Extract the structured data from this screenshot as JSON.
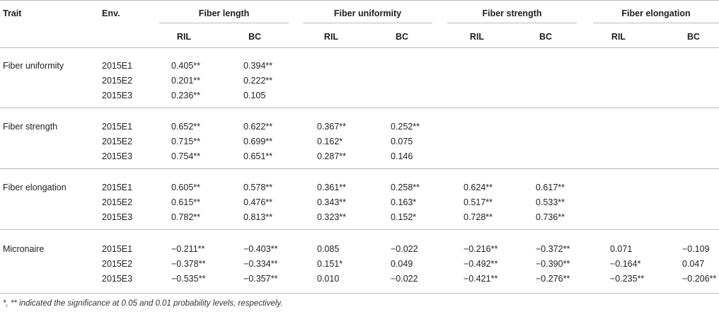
{
  "columns": {
    "trait": "Trait",
    "env": "Env.",
    "groups": [
      "Fiber length",
      "Fiber uniformity",
      "Fiber strength",
      "Fiber elongation"
    ],
    "sub": [
      "RIL",
      "BC"
    ]
  },
  "rows": [
    {
      "trait": "Fiber uniformity",
      "env": [
        "2015E1",
        "2015E2",
        "2015E3"
      ],
      "values": [
        [
          "0.405**",
          "0.394**",
          "",
          "",
          "",
          "",
          "",
          ""
        ],
        [
          "0.201**",
          "0.222**",
          "",
          "",
          "",
          "",
          "",
          ""
        ],
        [
          "0.236**",
          "0.105",
          "",
          "",
          "",
          "",
          "",
          ""
        ]
      ]
    },
    {
      "trait": "Fiber strength",
      "env": [
        "2015E1",
        "2015E2",
        "2015E3"
      ],
      "values": [
        [
          "0.652**",
          "0.622**",
          "0.367**",
          "0.252**",
          "",
          "",
          "",
          ""
        ],
        [
          "0.715**",
          "0.699**",
          "0.162*",
          "0.075",
          "",
          "",
          "",
          ""
        ],
        [
          "0.754**",
          "0.651**",
          "0.287**",
          "0.146",
          "",
          "",
          "",
          ""
        ]
      ]
    },
    {
      "trait": "Fiber elongation",
      "env": [
        "2015E1",
        "2015E2",
        "2015E3"
      ],
      "values": [
        [
          "0.605**",
          "0.578**",
          "0.361**",
          "0.258**",
          "0.624**",
          "0.617**",
          "",
          ""
        ],
        [
          "0.615**",
          "0.476**",
          "0.343**",
          "0.163*",
          "0.517**",
          "0.533**",
          "",
          ""
        ],
        [
          "0.782**",
          "0.813**",
          "0.323**",
          "0.152*",
          "0.728**",
          "0.736**",
          "",
          ""
        ]
      ]
    },
    {
      "trait": "Micronaire",
      "env": [
        "2015E1",
        "2015E2",
        "2015E3"
      ],
      "values": [
        [
          "−0.211**",
          "−0.403**",
          "0.085",
          "−0.022",
          "−0.216**",
          "−0.372**",
          "0.071",
          "−0.109"
        ],
        [
          "−0.378**",
          "−0.334**",
          "0.151*",
          "0.049",
          "−0.492**",
          "−0.390**",
          "−0.164*",
          "0.047"
        ],
        [
          "−0.535**",
          "−0.357**",
          "0.010",
          "−0.022",
          "−0.421**",
          "−0.276**",
          "−0.235**",
          "−0.206**"
        ]
      ]
    }
  ],
  "footnote": "*, ** indicated the significance at 0.05 and 0.01 probability levels, respectively."
}
